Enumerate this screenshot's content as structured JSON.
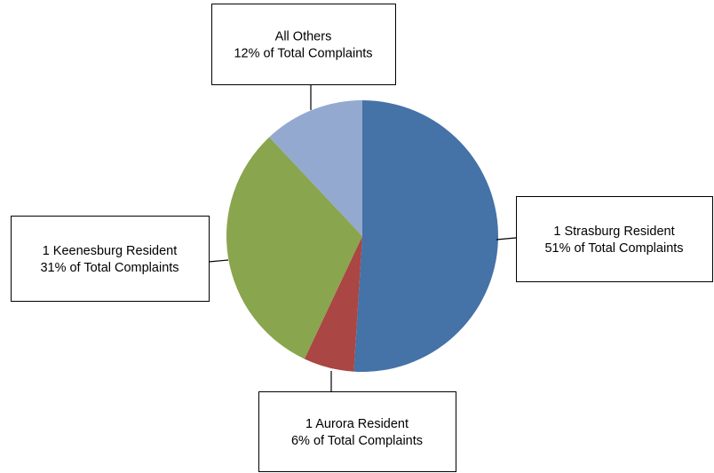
{
  "chart_data": {
    "type": "pie",
    "start_angle_deg": 0,
    "direction": "clockwise",
    "slices": [
      {
        "label": "1 Strasburg Resident",
        "value": 51,
        "value_text": "51% of Total Complaints",
        "color": "#4572A7"
      },
      {
        "label": "1 Aurora Resident",
        "value": 6,
        "value_text": "6% of Total Complaints",
        "color": "#AA4643"
      },
      {
        "label": "1 Keenesburg Resident",
        "value": 31,
        "value_text": "31% of Total Complaints",
        "color": "#89A54E"
      },
      {
        "label": "All Others",
        "value": 12,
        "value_text": "12% of Total Complaints",
        "color": "#93A9CF"
      }
    ]
  }
}
